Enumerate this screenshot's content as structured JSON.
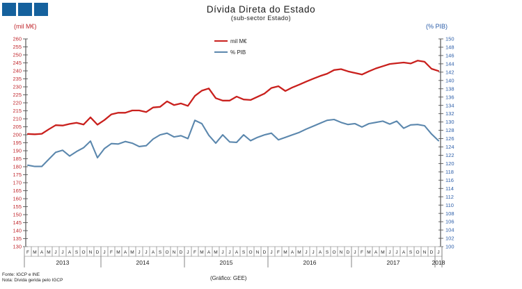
{
  "logo": {
    "square_color": "#15619d",
    "square_count": 3
  },
  "title": "Dívida Direta do Estado",
  "subtitle": "(sub-sector Estado)",
  "left_axis_title": "(mil M€)",
  "right_axis_title": "(% PIB)",
  "legend": [
    {
      "label": "mil M€",
      "color": "#c9201d"
    },
    {
      "label": "% PIB",
      "color": "#5b87ad"
    }
  ],
  "footer": {
    "source": "Fonte: IGCP e INE",
    "note": "Nota: Dívida gerida pelo IGCP",
    "credit": "(Gráfico:  GEE)"
  },
  "chart_data": {
    "type": "line",
    "title": "Dívida Direta do Estado (sub-sector Estado)",
    "left_axis": {
      "label": "(mil M€)",
      "min": 130,
      "max": 260,
      "step": 5,
      "color": "#c0262c"
    },
    "right_axis": {
      "label": "(% PIB)",
      "min": 100,
      "max": 150,
      "step": 2,
      "color": "#2b5da8"
    },
    "grid": "off",
    "legend_position": "top-center",
    "years": [
      {
        "label": "2013",
        "months": [
          "F",
          "M",
          "A",
          "M",
          "J",
          "J",
          "A",
          "S",
          "O",
          "N",
          "D"
        ]
      },
      {
        "label": "2014",
        "months": [
          "J",
          "F",
          "M",
          "A",
          "M",
          "J",
          "J",
          "A",
          "S",
          "O",
          "N",
          "D"
        ]
      },
      {
        "label": "2015",
        "months": [
          "J",
          "F",
          "M",
          "A",
          "M",
          "J",
          "J",
          "A",
          "S",
          "O",
          "N",
          "D"
        ]
      },
      {
        "label": "2016",
        "months": [
          "J",
          "F",
          "M",
          "A",
          "M",
          "J",
          "J",
          "A",
          "S",
          "O",
          "N",
          "D"
        ]
      },
      {
        "label": "2017",
        "months": [
          "J",
          "F",
          "M",
          "A",
          "M",
          "J",
          "J",
          "A",
          "S",
          "O",
          "N",
          "D"
        ]
      },
      {
        "label": "2018",
        "months": [
          "J"
        ]
      }
    ],
    "series": [
      {
        "name": "mil M€",
        "axis": "left",
        "color": "#c9201d",
        "width": 2.3,
        "values": [
          200.5,
          200.3,
          200.6,
          203.4,
          206.0,
          205.8,
          206.8,
          207.5,
          206.4,
          210.9,
          206.3,
          209.2,
          212.8,
          213.8,
          213.8,
          215.2,
          215.2,
          214.2,
          217.1,
          217.5,
          220.9,
          218.6,
          219.6,
          218.1,
          224.3,
          227.6,
          229.0,
          222.9,
          221.4,
          221.4,
          223.9,
          222.1,
          221.8,
          223.8,
          225.8,
          229.3,
          230.4,
          227.4,
          229.6,
          231.4,
          233.3,
          235.1,
          236.8,
          238.2,
          240.5,
          241.1,
          239.7,
          238.7,
          237.7,
          239.7,
          241.5,
          242.9,
          244.3,
          244.8,
          245.2,
          244.6,
          246.4,
          245.7,
          241.3,
          239.9
        ]
      },
      {
        "name": "% PIB",
        "axis": "right",
        "color": "#5b87ad",
        "width": 2.1,
        "values": [
          119.6,
          119.3,
          119.3,
          121.0,
          122.7,
          123.2,
          121.8,
          122.9,
          123.8,
          125.4,
          121.4,
          123.6,
          124.8,
          124.7,
          125.3,
          124.9,
          124.1,
          124.3,
          125.9,
          126.9,
          127.3,
          126.4,
          126.7,
          126.0,
          130.4,
          129.6,
          126.8,
          124.9,
          126.9,
          125.2,
          125.1,
          126.9,
          125.5,
          126.3,
          126.9,
          127.3,
          125.7,
          126.3,
          126.9,
          127.5,
          128.3,
          129.0,
          129.7,
          130.4,
          130.6,
          129.9,
          129.4,
          129.6,
          128.8,
          129.6,
          129.9,
          130.2,
          129.5,
          130.2,
          128.5,
          129.3,
          129.4,
          129.1,
          127.1,
          125.5
        ]
      }
    ]
  }
}
